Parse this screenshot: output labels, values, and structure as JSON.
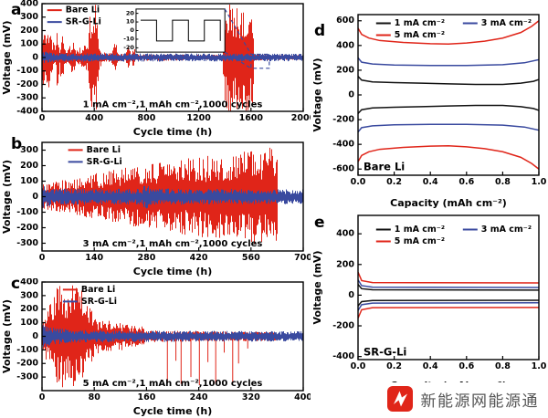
{
  "figure": {
    "panels": {
      "a": {
        "letter": "a"
      },
      "b": {
        "letter": "b"
      },
      "c": {
        "letter": "c"
      },
      "d": {
        "letter": "d"
      },
      "e": {
        "letter": "e"
      }
    },
    "watermark": {
      "text": "新能源网能源通",
      "icon": "logo-badge",
      "icon_color": "#e02519"
    }
  },
  "colors": {
    "bare_li_red": "#e02519",
    "sr_g_li_blue": "#3a4a9f",
    "series_black": "#111111"
  },
  "chart_data": [
    {
      "id": "a",
      "type": "line",
      "xlabel": "Cycle time (h)",
      "ylabel": "Voltage (mV)",
      "xlim": [
        0,
        2000
      ],
      "xticks": [
        0,
        400,
        800,
        1200,
        1600,
        2000
      ],
      "xtick_decimals": 0,
      "ylim": [
        -400,
        400
      ],
      "yticks": [
        -400,
        -300,
        -200,
        -100,
        0,
        100,
        200,
        300,
        400
      ],
      "legend": {
        "layout": "column",
        "fx": 0.02,
        "fy": 0.01,
        "entries": [
          {
            "label": "Bare Li",
            "color": "#e02519"
          },
          {
            "label": "SR-G-Li",
            "color": "#3a4a9f"
          }
        ]
      },
      "annotation": {
        "text": "1 mA cm⁻²,1 mAh cm⁻²,1000 cycles",
        "fx": 0.5,
        "fy": 0.96
      },
      "series": [
        {
          "name": "Bare Li",
          "color": "#e02519",
          "render": "noise",
          "envelope": [
            [
              0,
              240
            ],
            [
              40,
              260
            ],
            [
              70,
              160
            ],
            [
              100,
              90
            ],
            [
              115,
              260
            ],
            [
              130,
              80
            ],
            [
              150,
              200
            ],
            [
              170,
              60
            ],
            [
              200,
              60
            ],
            [
              230,
              140
            ],
            [
              260,
              60
            ],
            [
              300,
              80
            ],
            [
              350,
              120
            ],
            [
              370,
              400
            ],
            [
              420,
              400
            ],
            [
              435,
              80
            ],
            [
              470,
              40
            ],
            [
              520,
              30
            ],
            [
              560,
              140
            ],
            [
              580,
              30
            ],
            [
              640,
              30
            ],
            [
              660,
              110
            ],
            [
              680,
              30
            ],
            [
              700,
              80
            ],
            [
              720,
              25
            ],
            [
              1380,
              20
            ],
            [
              1392,
              400
            ],
            [
              1610,
              400
            ],
            [
              1622,
              22
            ],
            [
              2000,
              18
            ]
          ]
        },
        {
          "name": "SR-G-Li",
          "color": "#3a4a9f",
          "render": "noise",
          "envelope": [
            [
              0,
              50
            ],
            [
              60,
              38
            ],
            [
              200,
              32
            ],
            [
              2000,
              28
            ]
          ]
        }
      ],
      "inset": {
        "fx": 0.36,
        "fy": 0.05,
        "fw": 0.34,
        "fh": 0.4,
        "ylim": [
          -25,
          25
        ],
        "yticks": [
          20,
          10,
          0,
          -10,
          -20
        ],
        "wave_amplitude": 12,
        "wave_periods": 2.5,
        "connector_color": "#3a4a9f",
        "target_box": {
          "fx": 0.8,
          "fy": 0.47,
          "fw": 0.07,
          "fh": 0.13
        }
      }
    },
    {
      "id": "b",
      "type": "line",
      "xlabel": "Cycle time (h)",
      "ylabel": "Voltage (mV)",
      "xlim": [
        0,
        700
      ],
      "xticks": [
        0,
        140,
        280,
        420,
        560,
        700
      ],
      "xtick_decimals": 0,
      "ylim": [
        -350,
        350
      ],
      "yticks": [
        -300,
        -200,
        -100,
        0,
        100,
        200,
        300
      ],
      "legend": {
        "layout": "column",
        "fx": 0.1,
        "fy": 0.02,
        "entries": [
          {
            "label": "Bare Li",
            "color": "#e02519"
          },
          {
            "label": "SR-G-Li",
            "color": "#3a4a9f"
          }
        ]
      },
      "annotation": {
        "text": "3 mA cm⁻²,1 mAh cm⁻²,1000 cycles",
        "fx": 0.5,
        "fy": 0.96
      },
      "series": [
        {
          "name": "Bare Li",
          "color": "#e02519",
          "render": "noise",
          "envelope": [
            [
              0,
              80
            ],
            [
              60,
              110
            ],
            [
              140,
              150
            ],
            [
              220,
              185
            ],
            [
              300,
              215
            ],
            [
              380,
              245
            ],
            [
              460,
              275
            ],
            [
              540,
              300
            ],
            [
              600,
              315
            ],
            [
              628,
              325
            ],
            [
              632,
              0
            ],
            [
              700,
              0
            ]
          ]
        },
        {
          "name": "SR-G-Li",
          "color": "#3a4a9f",
          "render": "noise",
          "envelope": [
            [
              0,
              75
            ],
            [
              30,
              55
            ],
            [
              250,
              50
            ],
            [
              268,
              52
            ],
            [
              278,
              95
            ],
            [
              288,
              52
            ],
            [
              700,
              48
            ]
          ]
        }
      ]
    },
    {
      "id": "c",
      "type": "line",
      "xlabel": "Cycle time (h)",
      "ylabel": "Voltage (mV)",
      "xlim": [
        0,
        400
      ],
      "xticks": [
        0,
        80,
        160,
        240,
        320,
        400
      ],
      "xtick_decimals": 0,
      "ylim": [
        -400,
        400
      ],
      "yticks": [
        -300,
        -200,
        -100,
        0,
        100,
        200,
        300,
        400
      ],
      "legend": {
        "layout": "column",
        "fx": 0.08,
        "fy": 0.02,
        "entries": [
          {
            "label": "Bare Li",
            "color": "#e02519"
          },
          {
            "label": "SR-G-Li",
            "color": "#3a4a9f"
          }
        ]
      },
      "annotation": {
        "text": "5 mA cm⁻²,1 mAh cm⁻²,1000 cycles",
        "fx": 0.5,
        "fy": 0.96
      },
      "series": [
        {
          "name": "Bare Li",
          "color": "#e02519",
          "render": "noise",
          "envelope": [
            [
              0,
              130
            ],
            [
              10,
              210
            ],
            [
              18,
              350
            ],
            [
              30,
              380
            ],
            [
              55,
              380
            ],
            [
              70,
              260
            ],
            [
              80,
              140
            ],
            [
              95,
              110
            ],
            [
              110,
              120
            ],
            [
              130,
              90
            ],
            [
              150,
              80
            ],
            [
              165,
              45
            ],
            [
              200,
              40
            ],
            [
              240,
              38
            ],
            [
              300,
              36
            ],
            [
              358,
              34
            ],
            [
              362,
              0
            ],
            [
              400,
              0
            ]
          ],
          "spikes": [
            [
              192,
              -340
            ],
            [
              205,
              -180
            ],
            [
              213,
              -350
            ],
            [
              228,
              -300
            ],
            [
              241,
              -360
            ],
            [
              254,
              -190
            ],
            [
              266,
              -350
            ],
            [
              279,
              -120
            ],
            [
              292,
              -345
            ],
            [
              301,
              -200
            ],
            [
              315,
              -90
            ]
          ]
        },
        {
          "name": "SR-G-Li",
          "color": "#3a4a9f",
          "render": "noise",
          "envelope": [
            [
              0,
              85
            ],
            [
              15,
              65
            ],
            [
              50,
              50
            ],
            [
              120,
              42
            ],
            [
              400,
              38
            ]
          ]
        }
      ]
    },
    {
      "id": "d",
      "type": "line",
      "xlabel": "Capacity (mAh cm⁻²)",
      "ylabel": "Voltage (mV)",
      "xlim": [
        0,
        1
      ],
      "xticks": [
        0,
        0.2,
        0.4,
        0.6,
        0.8,
        1.0
      ],
      "xtick_decimals": 1,
      "ylim": [
        -650,
        650
      ],
      "yticks": [
        -600,
        -400,
        -200,
        0,
        200,
        400,
        600
      ],
      "legend": {
        "layout": "grid",
        "fx": 0.1,
        "fy": 0.02,
        "entries": [
          {
            "label": "1 mA cm⁻²",
            "color": "#111111"
          },
          {
            "label": "3 mA cm⁻²",
            "color": "#3a4a9f"
          },
          {
            "label": "5 mA cm⁻²",
            "color": "#e02519"
          }
        ]
      },
      "label": {
        "text": "Bare Li",
        "fx": 0.03,
        "fy": 0.97
      },
      "series": [
        {
          "name": "1 mA cm⁻²",
          "color": "#111111",
          "render": "mirror",
          "upper": [
            [
              0,
              150
            ],
            [
              0.02,
              120
            ],
            [
              0.08,
              105
            ],
            [
              0.2,
              100
            ],
            [
              0.35,
              95
            ],
            [
              0.5,
              90
            ],
            [
              0.65,
              85
            ],
            [
              0.8,
              85
            ],
            [
              0.9,
              95
            ],
            [
              0.97,
              110
            ],
            [
              1,
              125
            ]
          ]
        },
        {
          "name": "3 mA cm⁻²",
          "color": "#3a4a9f",
          "render": "mirror",
          "upper": [
            [
              0,
              300
            ],
            [
              0.02,
              265
            ],
            [
              0.08,
              250
            ],
            [
              0.2,
              242
            ],
            [
              0.4,
              238
            ],
            [
              0.6,
              238
            ],
            [
              0.8,
              245
            ],
            [
              0.92,
              260
            ],
            [
              1,
              285
            ]
          ]
        },
        {
          "name": "5 mA cm⁻²",
          "color": "#e02519",
          "render": "mirror",
          "upper": [
            [
              0,
              540
            ],
            [
              0.02,
              490
            ],
            [
              0.06,
              460
            ],
            [
              0.12,
              440
            ],
            [
              0.25,
              425
            ],
            [
              0.4,
              415
            ],
            [
              0.5,
              412
            ],
            [
              0.6,
              420
            ],
            [
              0.7,
              435
            ],
            [
              0.8,
              460
            ],
            [
              0.9,
              505
            ],
            [
              0.96,
              555
            ],
            [
              1,
              600
            ]
          ]
        }
      ]
    },
    {
      "id": "e",
      "type": "line",
      "xlabel": "Capacity (mAh cm⁻²)",
      "ylabel": "Voltage (mV)",
      "xlim": [
        0,
        1
      ],
      "xticks": [
        0,
        0.2,
        0.4,
        0.6,
        0.8,
        1.0
      ],
      "xtick_decimals": 1,
      "ylim": [
        -420,
        520
      ],
      "yticks": [
        -400,
        -200,
        0,
        200,
        400
      ],
      "legend": {
        "layout": "grid",
        "fx": 0.1,
        "fy": 0.06,
        "entries": [
          {
            "label": "1 mA cm⁻²",
            "color": "#111111"
          },
          {
            "label": "3 mA cm⁻²",
            "color": "#3a4a9f"
          },
          {
            "label": "5 mA cm⁻²",
            "color": "#e02519"
          }
        ]
      },
      "label": {
        "text": "SR-G-Li",
        "fx": 0.03,
        "fy": 0.97
      },
      "series": [
        {
          "name": "1 mA cm⁻²",
          "color": "#111111",
          "render": "mirror",
          "upper": [
            [
              0,
              70
            ],
            [
              0.02,
              42
            ],
            [
              0.08,
              35
            ],
            [
              1,
              33
            ]
          ]
        },
        {
          "name": "3 mA cm⁻²",
          "color": "#3a4a9f",
          "render": "mirror",
          "upper": [
            [
              0,
              100
            ],
            [
              0.02,
              62
            ],
            [
              0.08,
              52
            ],
            [
              1,
              50
            ]
          ]
        },
        {
          "name": "5 mA cm⁻²",
          "color": "#e02519",
          "render": "mirror",
          "upper": [
            [
              0,
              150
            ],
            [
              0.02,
              95
            ],
            [
              0.08,
              82
            ],
            [
              1,
              80
            ]
          ]
        }
      ]
    }
  ]
}
